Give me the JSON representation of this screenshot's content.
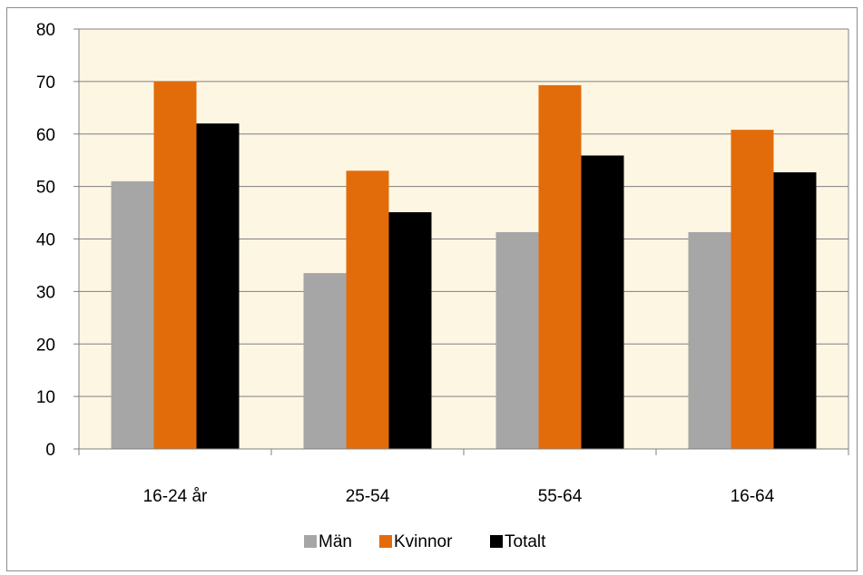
{
  "chart_data": {
    "type": "bar",
    "categories": [
      "16-24 år",
      "25-54",
      "55-64",
      "16-64"
    ],
    "series": [
      {
        "name": "Män",
        "color": "#a6a6a6",
        "values": [
          51,
          33.5,
          41.3,
          41.3
        ]
      },
      {
        "name": "Kvinnor",
        "color": "#e36c0a",
        "values": [
          70,
          53,
          69.3,
          60.8
        ]
      },
      {
        "name": "Totalt",
        "color": "#000000",
        "values": [
          62,
          45.1,
          55.9,
          52.7
        ]
      }
    ],
    "ylim": [
      0,
      80
    ],
    "yticks": [
      0,
      10,
      20,
      30,
      40,
      50,
      60,
      70,
      80
    ],
    "grid": true,
    "legend": "bottom",
    "plot_background": "#fdf6e3"
  }
}
